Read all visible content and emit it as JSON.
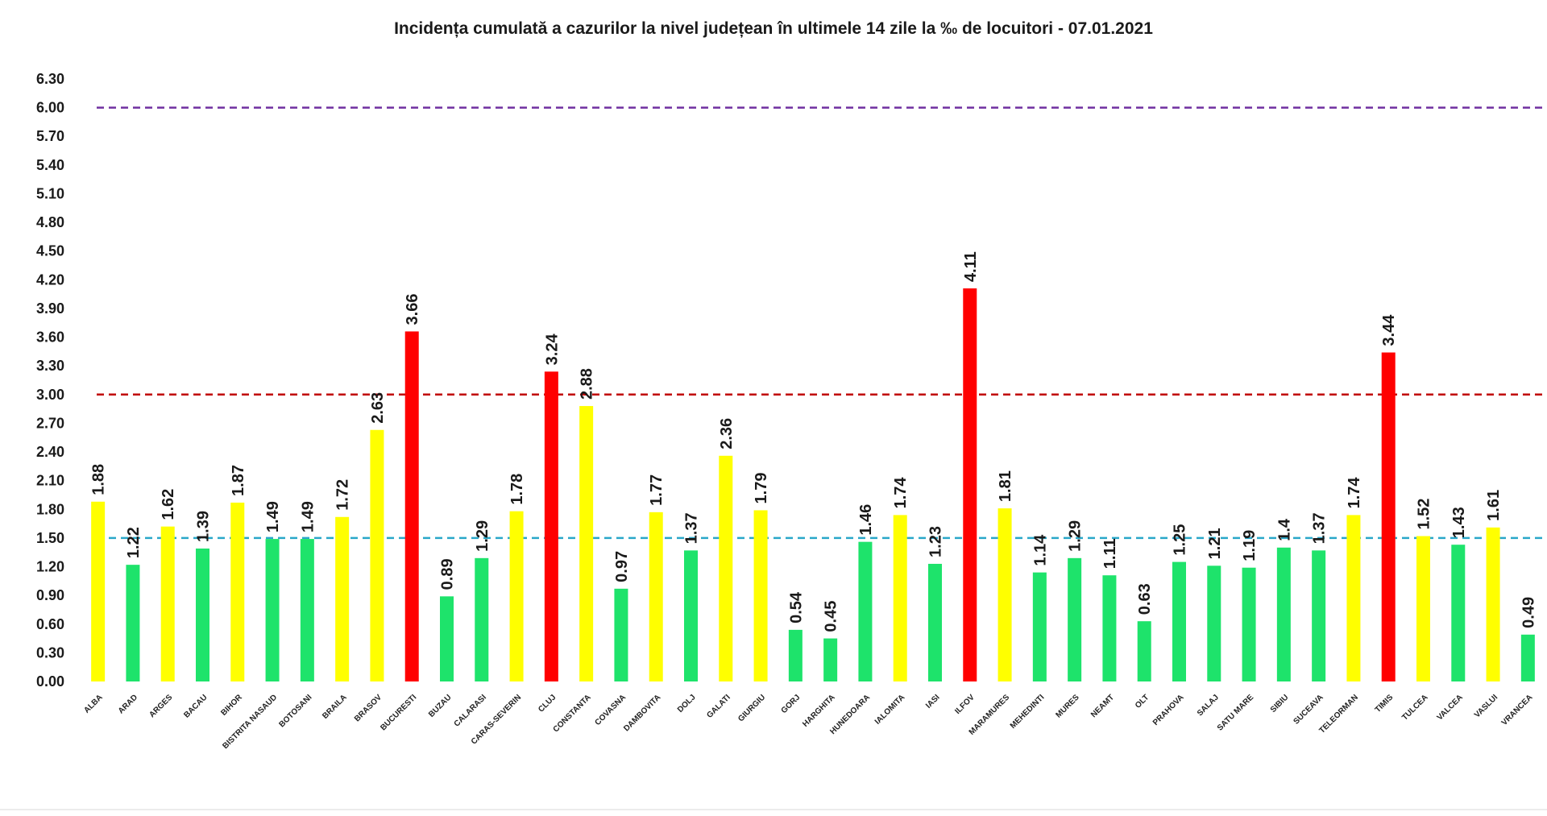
{
  "chart_data": {
    "type": "bar",
    "title": "Incidența cumulată a cazurilor la nivel județean în ultimele 14 zile la ‰ de locuitori - 07.01.2021",
    "xlabel": "",
    "ylabel": "",
    "ylim": [
      0,
      6.3
    ],
    "yticks": [
      "0.00",
      "0.30",
      "0.60",
      "0.90",
      "1.20",
      "1.50",
      "1.80",
      "2.10",
      "2.40",
      "2.70",
      "3.00",
      "3.30",
      "3.60",
      "3.90",
      "4.20",
      "4.50",
      "4.80",
      "5.10",
      "5.40",
      "5.70",
      "6.00",
      "6.30"
    ],
    "categories": [
      "ALBA",
      "ARAD",
      "ARGES",
      "BACAU",
      "BIHOR",
      "BISTRITA NASAUD",
      "BOTOSANI",
      "BRAILA",
      "BRASOV",
      "BUCURESTI",
      "BUZAU",
      "CALARASI",
      "CARAS-SEVERIN",
      "CLUJ",
      "CONSTANTA",
      "COVASNA",
      "DAMBOVITA",
      "DOLJ",
      "GALATI",
      "GIURGIU",
      "GORJ",
      "HARGHITA",
      "HUNEDOARA",
      "IALOMITA",
      "IASI",
      "ILFOV",
      "MARAMURES",
      "MEHEDINTI",
      "MURES",
      "NEAMT",
      "OLT",
      "PRAHOVA",
      "SALAJ",
      "SATU MARE",
      "SIBIU",
      "SUCEAVA",
      "TELEORMAN",
      "TIMIS",
      "TULCEA",
      "VALCEA",
      "VASLUI",
      "VRANCEA"
    ],
    "values": [
      1.88,
      1.22,
      1.62,
      1.39,
      1.87,
      1.49,
      1.49,
      1.72,
      2.63,
      3.66,
      0.89,
      1.29,
      1.78,
      3.24,
      2.88,
      0.97,
      1.77,
      1.37,
      2.36,
      1.79,
      0.54,
      0.45,
      1.46,
      1.74,
      1.23,
      4.11,
      1.81,
      1.14,
      1.29,
      1.11,
      0.63,
      1.25,
      1.21,
      1.19,
      1.4,
      1.37,
      1.74,
      3.44,
      1.52,
      1.43,
      1.61,
      0.49
    ],
    "value_labels": [
      "1.88",
      "1.22",
      "1.62",
      "1.39",
      "1.87",
      "1.49",
      "1.49",
      "1.72",
      "2.63",
      "3.66",
      "0.89",
      "1.29",
      "1.78",
      "3.24",
      "2.88",
      "0.97",
      "1.77",
      "1.37",
      "2.36",
      "1.79",
      "0.54",
      "0.45",
      "1.46",
      "1.74",
      "1.23",
      "4.11",
      "1.81",
      "1.14",
      "1.29",
      "1.11",
      "0.63",
      "1.25",
      "1.21",
      "1.19",
      "1.4",
      "1.37",
      "1.74",
      "3.44",
      "1.52",
      "1.43",
      "1.61",
      "0.49"
    ],
    "colors": [
      "yellow",
      "green",
      "yellow",
      "green",
      "yellow",
      "green",
      "green",
      "yellow",
      "yellow",
      "red",
      "green",
      "green",
      "yellow",
      "red",
      "yellow",
      "green",
      "yellow",
      "green",
      "yellow",
      "yellow",
      "green",
      "green",
      "green",
      "yellow",
      "green",
      "red",
      "yellow",
      "green",
      "green",
      "green",
      "green",
      "green",
      "green",
      "green",
      "green",
      "green",
      "yellow",
      "red",
      "yellow",
      "green",
      "yellow",
      "green"
    ],
    "palette": {
      "green": "#1ee36b",
      "yellow": "#ffff00",
      "red": "#ff0000"
    },
    "thresholds": [
      {
        "value": 6.0,
        "color": "#7030a0"
      },
      {
        "value": 3.0,
        "color": "#c00000"
      },
      {
        "value": 1.5,
        "color": "#2aa7c9"
      }
    ],
    "grid": false,
    "legend": "none"
  }
}
